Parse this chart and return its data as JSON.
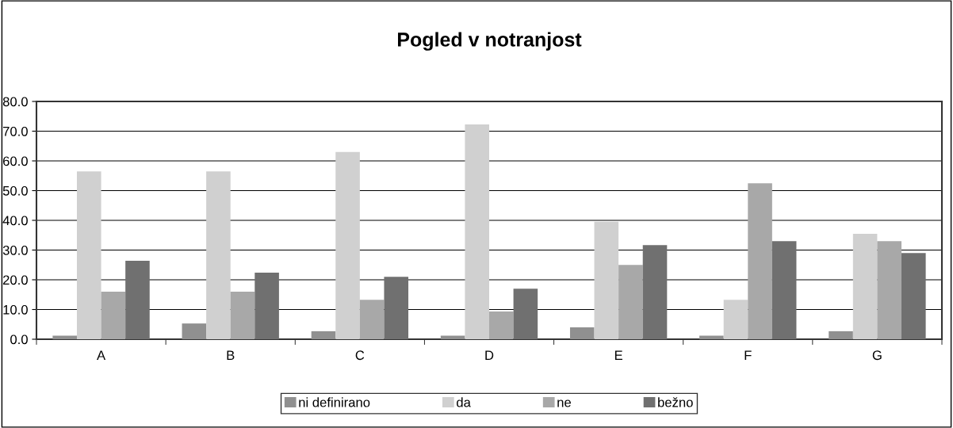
{
  "chart_data": {
    "type": "bar",
    "title": "Pogled v notranjost",
    "categories": [
      "A",
      "B",
      "C",
      "D",
      "E",
      "F",
      "G"
    ],
    "series": [
      {
        "name": "ni definirano",
        "color": "#909090",
        "values": [
          1.2,
          5.3,
          2.7,
          1.2,
          4.0,
          1.2,
          2.7
        ]
      },
      {
        "name": "da",
        "color": "#d0d0d0",
        "values": [
          56.5,
          56.5,
          63.0,
          72.3,
          39.5,
          13.3,
          35.5
        ]
      },
      {
        "name": "ne",
        "color": "#a8a8a8",
        "values": [
          16.0,
          16.0,
          13.3,
          9.3,
          25.0,
          52.5,
          33.0
        ]
      },
      {
        "name": "bežno",
        "color": "#707070",
        "values": [
          26.4,
          22.4,
          21.0,
          17.0,
          31.7,
          33.0,
          29.0
        ]
      }
    ],
    "ylim": [
      0,
      80
    ],
    "yticks": [
      {
        "value": 0,
        "label": "0.0"
      },
      {
        "value": 10,
        "label": "10.0"
      },
      {
        "value": 20,
        "label": "20.0"
      },
      {
        "value": 30,
        "label": "30.0"
      },
      {
        "value": 40,
        "label": "40.0"
      },
      {
        "value": 50,
        "label": "50.0"
      },
      {
        "value": 60,
        "label": "60.0"
      },
      {
        "value": 70,
        "label": "70.0"
      },
      {
        "value": 80,
        "label": "80.0"
      }
    ],
    "grid": "y",
    "legend": "bottom"
  }
}
